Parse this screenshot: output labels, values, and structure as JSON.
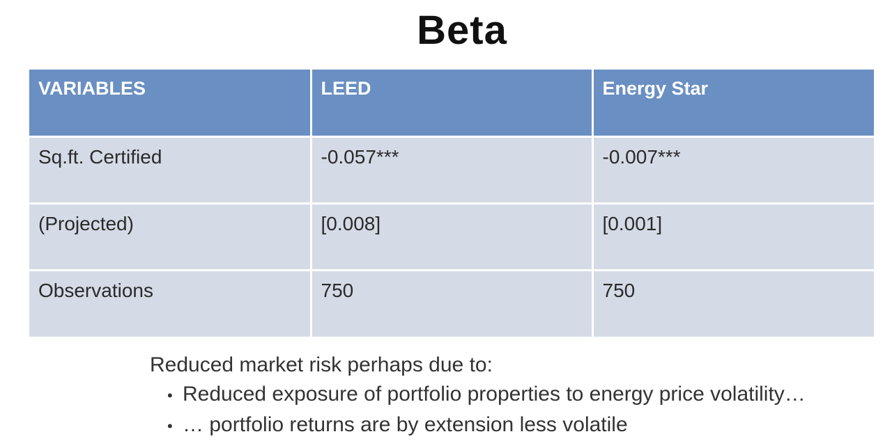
{
  "slide": {
    "title": "Beta"
  },
  "table": {
    "headers": [
      "VARIABLES",
      "LEED",
      "Energy Star"
    ],
    "rows": [
      [
        "Sq.ft. Certified",
        "-0.057***",
        "-0.007***"
      ],
      [
        "(Projected)",
        "[0.008]",
        "[0.001]"
      ],
      [
        "Observations",
        "750",
        "750"
      ]
    ]
  },
  "notes": {
    "intro": "Reduced market risk perhaps due to:",
    "bullets": [
      "Reduced exposure of portfolio properties to energy price volatility…",
      "… portfolio returns are by extension less volatile"
    ]
  }
}
